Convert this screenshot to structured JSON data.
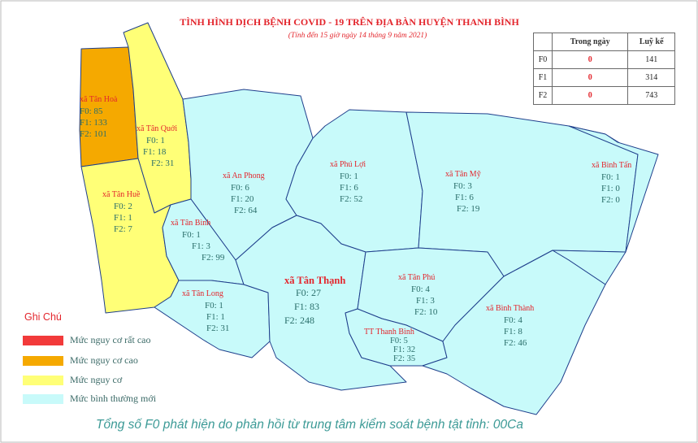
{
  "title": "TÌNH HÌNH DỊCH BỆNH COVID - 19 TRÊN ĐỊA BÀN HUYỆN THANH BÌNH",
  "subtitle": "(Tính đến 15 giờ ngày 14 tháng 9 năm 2021)",
  "colors": {
    "very_high": "#f23a3a",
    "high": "#f5a900",
    "medium": "#ffff77",
    "normal": "#c8fafa",
    "boundary": "#1f3f8c",
    "label_red": "#e3262d",
    "label_teal": "#2a6e6a"
  },
  "summary": {
    "headers": [
      "Trong ngày",
      "Luỹ kế"
    ],
    "rows": [
      {
        "label": "F0",
        "today": "0",
        "total": "141"
      },
      {
        "label": "F1",
        "today": "0",
        "total": "314"
      },
      {
        "label": "F2",
        "today": "0",
        "total": "743"
      }
    ]
  },
  "communes": [
    {
      "name": "xã Tân Hoà",
      "f0": "F0: 85",
      "f1": "F1: 133",
      "f2": "F2: 101",
      "level": "high"
    },
    {
      "name": "xã Tân Quới",
      "f0": "F0: 1",
      "f1": "F1: 18",
      "f2": "F2: 31",
      "level": "medium"
    },
    {
      "name": "xã Tân Huề",
      "f0": "F0: 2",
      "f1": "F1: 1",
      "f2": "F2: 7",
      "level": "medium"
    },
    {
      "name": "xã An Phong",
      "f0": "F0: 6",
      "f1": "F1: 20",
      "f2": "F2: 64",
      "level": "normal"
    },
    {
      "name": "xã Tân Bình",
      "f0": "F0: 1",
      "f1": "F1: 3",
      "f2": "F2: 99",
      "level": "normal"
    },
    {
      "name": "xã Tân Long",
      "f0": "F0: 1",
      "f1": "F1: 1",
      "f2": "F2: 31",
      "level": "normal"
    },
    {
      "name": "xã Phú Lợi",
      "f0": "F0: 1",
      "f1": "F1: 6",
      "f2": "F2: 52",
      "level": "normal"
    },
    {
      "name": "xã Tân Mỹ",
      "f0": "F0: 3",
      "f1": "F1: 6",
      "f2": "F2: 19",
      "level": "normal"
    },
    {
      "name": "xã Bình Tấn",
      "f0": "F0: 1",
      "f1": "F1: 0",
      "f2": "F2: 0",
      "level": "normal"
    },
    {
      "name": "xã Tân Thạnh",
      "f0": "F0: 27",
      "f1": "F1: 83",
      "f2": "F2: 248",
      "level": "normal"
    },
    {
      "name": "xã Tân Phú",
      "f0": "F0: 4",
      "f1": "F1: 3",
      "f2": "F2: 10",
      "level": "normal"
    },
    {
      "name": "TT Thanh Bình",
      "f0": "F0: 5",
      "f1": "F1: 32",
      "f2": "F2: 35",
      "level": "normal"
    },
    {
      "name": "xã Bình Thành",
      "f0": "F0: 4",
      "f1": "F1: 8",
      "f2": "F2: 46",
      "level": "normal"
    }
  ],
  "legend": {
    "title": "Ghi Chú",
    "items": [
      {
        "label": "Mức  nguy cơ rất cao",
        "color": "#f23a3a"
      },
      {
        "label": "Mức  nguy cơ cao",
        "color": "#f5a900"
      },
      {
        "label": "Mức  nguy cơ",
        "color": "#ffff77"
      },
      {
        "label": "Mức  bình thường mới",
        "color": "#c8fafa"
      }
    ]
  },
  "footer": "Tổng số F0 phát hiện do phản hồi từ trung tâm kiểm soát bệnh tật tỉnh: 00Ca"
}
